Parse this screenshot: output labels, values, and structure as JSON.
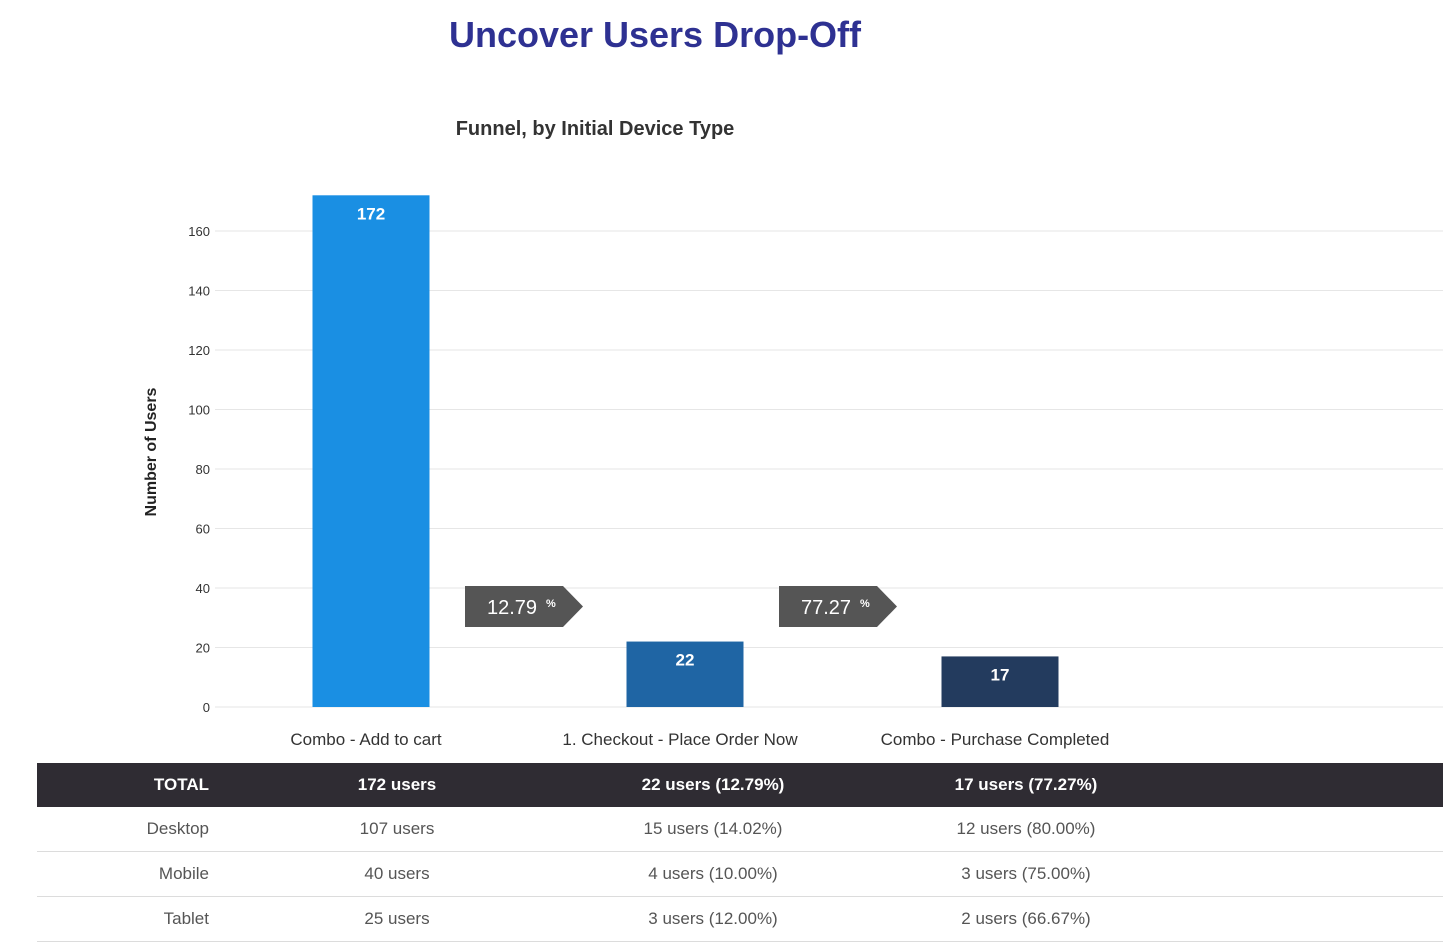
{
  "page": {
    "title": "Uncover Users Drop-Off"
  },
  "chart_data": {
    "type": "bar",
    "title": "Funnel, by Initial Device Type",
    "xlabel": "",
    "ylabel": "Number of Users",
    "categories": [
      "Combo - Add to cart",
      "1. Checkout - Place Order Now",
      "Combo - Purchase Completed"
    ],
    "values": [
      172,
      22,
      17
    ],
    "value_labels": [
      "172",
      "22",
      "17"
    ],
    "colors": [
      "#1a8fe3",
      "#1f65a4",
      "#233b5e"
    ],
    "conversions": [
      {
        "value": "12.79",
        "unit": "%"
      },
      {
        "value": "77.27",
        "unit": "%"
      }
    ],
    "ylim": [
      0,
      172
    ],
    "yticks": [
      0,
      20,
      40,
      60,
      80,
      100,
      120,
      140,
      160
    ],
    "grid": true,
    "legend": "none"
  },
  "table": {
    "rows": [
      {
        "label": "TOTAL",
        "cells": [
          "172 users",
          "22 users (12.79%)",
          "17 users (77.27%)"
        ]
      },
      {
        "label": "Desktop",
        "cells": [
          "107 users",
          "15 users (14.02%)",
          "12 users (80.00%)"
        ]
      },
      {
        "label": "Mobile",
        "cells": [
          "40 users",
          "4 users (10.00%)",
          "3 users (75.00%)"
        ]
      },
      {
        "label": "Tablet",
        "cells": [
          "25 users",
          "3 users (12.00%)",
          "2 users (66.67%)"
        ]
      }
    ]
  }
}
